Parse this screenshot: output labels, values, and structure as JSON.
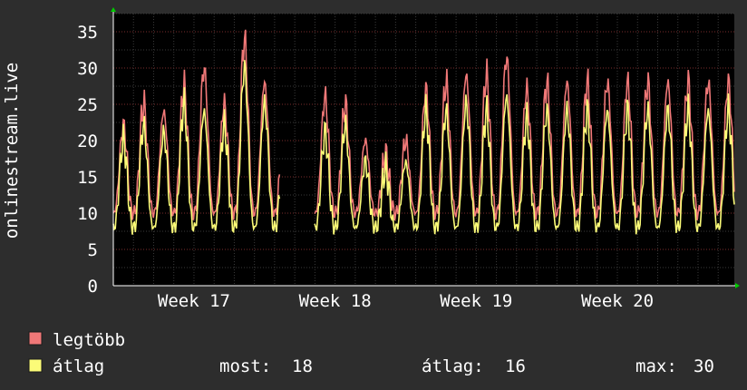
{
  "colors": {
    "background": "#2d2d2d",
    "plot_background": "#000000",
    "grid_minor": "#3a3a3a",
    "grid_major": "#7a2b2b",
    "text": "#ffffff",
    "arrow": "#00cc00",
    "max_series": "#f07878",
    "avg_series": "#fbfb78"
  },
  "chart_data": {
    "type": "line",
    "ylabel": "onlinestream.live",
    "ylim": [
      0,
      37.5
    ],
    "yticks": [
      0,
      5,
      10,
      15,
      20,
      25,
      30,
      35
    ],
    "ytick_labels": [
      "0",
      "5",
      "10",
      "15",
      "20",
      "25",
      "30",
      "35"
    ],
    "xlim": [
      16.5,
      20.9
    ],
    "xticks": [
      17,
      18,
      19,
      20
    ],
    "xtick_labels": [
      "Week 17",
      "Week 18",
      "Week 19",
      "Week 20"
    ],
    "grid": true,
    "gap": [
      17.68,
      17.92
    ],
    "series": [
      {
        "name": "legtöbb",
        "color": "#f07878",
        "peaks": [
          22,
          25,
          24,
          27.5,
          30,
          25,
          34,
          28,
          26,
          25,
          26,
          25,
          20,
          18,
          20,
          27,
          28,
          29,
          29,
          31.5,
          27,
          28
        ]
      },
      {
        "name": "átlag",
        "color": "#fbfb78",
        "peaks": [
          20,
          22,
          21,
          25,
          24,
          22,
          30,
          25,
          23,
          22,
          21,
          22,
          17,
          16,
          17,
          24,
          24,
          25,
          24,
          26,
          23,
          24
        ]
      }
    ]
  },
  "legend": {
    "max_label": "legtöbb",
    "avg_label": "átlag",
    "now_label": "most:",
    "now_value": "18",
    "avg_stat_label": "átlag:",
    "avg_stat_value": "16",
    "max_stat_label": "max:",
    "max_stat_value": "30"
  }
}
